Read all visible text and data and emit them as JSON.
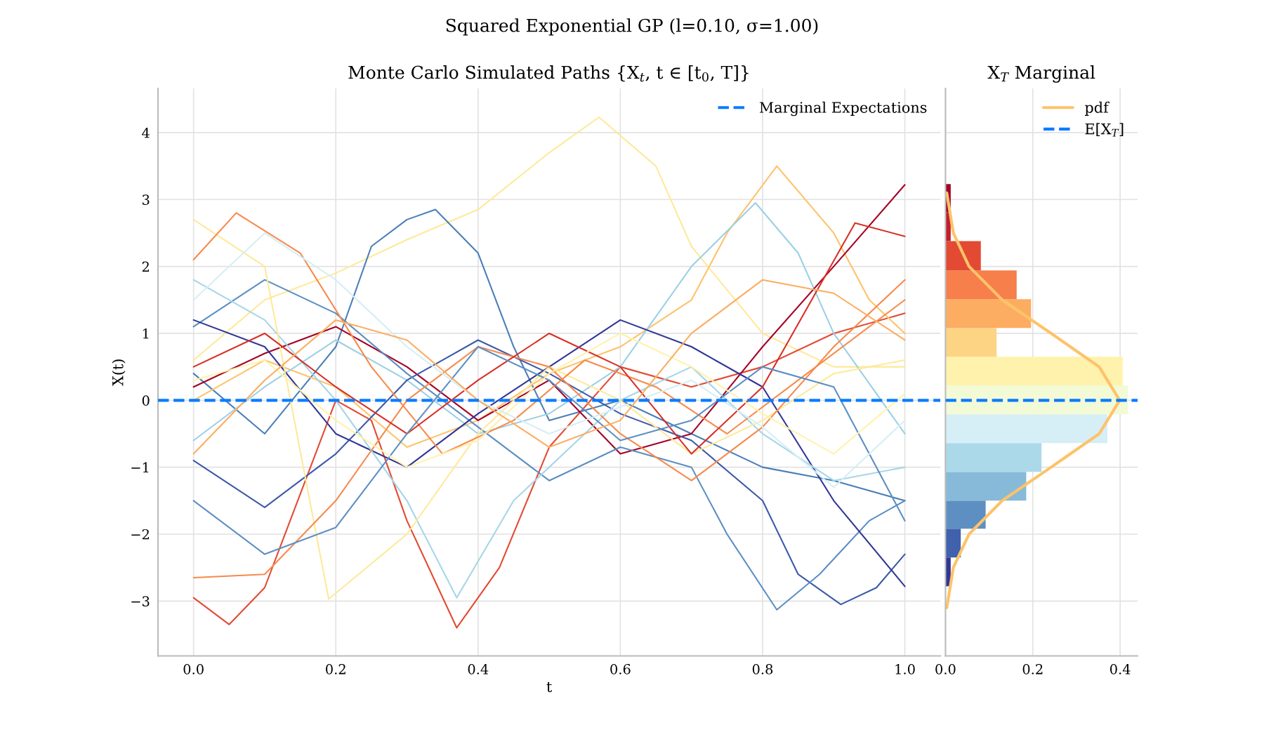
{
  "chart_data": [
    {
      "type": "line",
      "title": "Squared Exponential GP (l=0.10, σ=1.00)",
      "subtitle": "Monte Carlo Simulated Paths {X$_{t}$, t ∈ [t$_{0}$, T]}",
      "xlabel": "t",
      "ylabel": "X(t)",
      "xlim": [
        -0.05,
        1.05
      ],
      "ylim": [
        -3.82,
        4.66
      ],
      "xticks": [
        {
          "value": 0,
          "label": "0.0"
        },
        {
          "value": 0.2,
          "label": "0.2"
        },
        {
          "value": 0.4,
          "label": "0.4"
        },
        {
          "value": 0.6,
          "label": "0.6"
        },
        {
          "value": 0.8,
          "label": "0.8"
        },
        {
          "value": 1,
          "label": "1.0"
        }
      ],
      "yticks": [
        {
          "value": -3,
          "label": "−3"
        },
        {
          "value": -2,
          "label": "−2"
        },
        {
          "value": -1,
          "label": "−1"
        },
        0,
        1,
        2,
        3,
        4
      ],
      "grid": true,
      "legend": "top right",
      "ref_lines": [
        {
          "axis": "y",
          "value": 0,
          "label": "Marginal Expectations",
          "color": "#0a7cff",
          "line_style": "dashed"
        }
      ],
      "series": [
        {
          "color": "#fee99a",
          "x": [
            0,
            0.1,
            0.2,
            0.3,
            0.4,
            0.5,
            0.57,
            0.65,
            0.7,
            0.8,
            0.9,
            1.0
          ],
          "values": [
            0.6,
            1.5,
            1.9,
            2.4,
            2.85,
            3.7,
            4.23,
            3.5,
            2.3,
            1.0,
            0.5,
            0.5
          ]
        },
        {
          "color": "#e34a33",
          "x": [
            0,
            0.05,
            0.1,
            0.15,
            0.2,
            0.25,
            0.3,
            0.37,
            0.43,
            0.5,
            0.6,
            0.7,
            0.8,
            0.9,
            1.0
          ],
          "values": [
            -2.95,
            -3.35,
            -2.8,
            -1.4,
            0.0,
            -0.3,
            -1.8,
            -3.4,
            -2.5,
            -0.7,
            0.5,
            0.2,
            0.5,
            1.0,
            1.3
          ]
        },
        {
          "color": "#4a7fb8",
          "x": [
            0,
            0.1,
            0.2,
            0.25,
            0.3,
            0.34,
            0.4,
            0.45,
            0.5,
            0.6,
            0.7,
            0.8,
            0.9,
            1.0
          ],
          "values": [
            0.4,
            -0.5,
            0.8,
            2.3,
            2.7,
            2.85,
            2.2,
            0.8,
            -0.3,
            0.0,
            -0.5,
            -1.0,
            -1.2,
            -1.5
          ]
        },
        {
          "color": "#fdc36a",
          "x": [
            0,
            0.1,
            0.2,
            0.3,
            0.4,
            0.5,
            0.6,
            0.7,
            0.75,
            0.82,
            0.9,
            0.95,
            1.0
          ],
          "values": [
            0.0,
            0.6,
            0.2,
            -0.7,
            -0.3,
            0.4,
            0.8,
            1.5,
            2.5,
            3.5,
            2.5,
            1.5,
            1.0
          ]
        },
        {
          "color": "#9cd0e4",
          "x": [
            0,
            0.1,
            0.2,
            0.3,
            0.4,
            0.5,
            0.6,
            0.7,
            0.79,
            0.85,
            0.9,
            1.0
          ],
          "values": [
            -0.6,
            0.2,
            0.9,
            0.3,
            -0.5,
            -0.2,
            0.5,
            2.0,
            2.95,
            2.2,
            1.0,
            -0.5
          ]
        },
        {
          "color": "#a50026",
          "x": [
            0,
            0.1,
            0.2,
            0.3,
            0.4,
            0.5,
            0.6,
            0.7,
            0.8,
            0.9,
            1.0
          ],
          "values": [
            0.2,
            0.7,
            1.1,
            0.5,
            -0.3,
            0.3,
            -0.8,
            -0.5,
            0.8,
            2.0,
            3.22
          ]
        },
        {
          "color": "#3d5aa8",
          "x": [
            0,
            0.1,
            0.2,
            0.3,
            0.4,
            0.5,
            0.6,
            0.7,
            0.8,
            0.85,
            0.91,
            0.96,
            1.0
          ],
          "values": [
            -0.9,
            -1.6,
            -0.8,
            0.3,
            0.9,
            0.4,
            -0.2,
            -0.6,
            -1.5,
            -2.6,
            -3.05,
            -2.8,
            -2.3
          ]
        },
        {
          "color": "#5b8ec2",
          "x": [
            0,
            0.1,
            0.2,
            0.3,
            0.4,
            0.5,
            0.6,
            0.7,
            0.75,
            0.82,
            0.88,
            0.95,
            1.0
          ],
          "values": [
            1.1,
            1.8,
            1.3,
            0.4,
            -0.4,
            -1.2,
            -0.7,
            -1.0,
            -2.0,
            -3.13,
            -2.6,
            -1.8,
            -1.5
          ]
        },
        {
          "color": "#313695",
          "x": [
            0,
            0.1,
            0.2,
            0.3,
            0.4,
            0.5,
            0.6,
            0.7,
            0.8,
            0.9,
            1.0
          ],
          "values": [
            1.2,
            0.8,
            -0.5,
            -1.0,
            -0.2,
            0.5,
            1.2,
            0.8,
            0.2,
            -1.5,
            -2.78
          ]
        },
        {
          "color": "#a6d6e8",
          "x": [
            0,
            0.1,
            0.2,
            0.3,
            0.37,
            0.45,
            0.6,
            0.7,
            0.8,
            0.9,
            1.0
          ],
          "values": [
            1.8,
            1.2,
            0.0,
            -1.5,
            -2.95,
            -1.5,
            0.0,
            0.5,
            -0.5,
            -1.2,
            -1.0
          ]
        },
        {
          "color": "#fee99a",
          "x": [
            0,
            0.1,
            0.19,
            0.3,
            0.4,
            0.5,
            0.6,
            0.7,
            0.8,
            0.9,
            1.0
          ],
          "values": [
            2.7,
            2.0,
            -2.97,
            -2.0,
            -0.5,
            0.5,
            0.0,
            -0.8,
            -0.3,
            0.4,
            0.6
          ]
        },
        {
          "color": "#f68a4c",
          "x": [
            0,
            0.06,
            0.15,
            0.25,
            0.35,
            0.45,
            0.55,
            0.65,
            0.75,
            0.85,
            1.0
          ],
          "values": [
            2.1,
            2.8,
            2.2,
            0.5,
            -0.8,
            -0.3,
            0.6,
            0.2,
            -0.5,
            0.3,
            1.5
          ]
        },
        {
          "color": "#f68a4c",
          "x": [
            0,
            0.1,
            0.2,
            0.3,
            0.4,
            0.5,
            0.6,
            0.7,
            0.8,
            0.9,
            1.0
          ],
          "values": [
            -2.65,
            -2.6,
            -1.5,
            0.0,
            0.8,
            0.5,
            -0.5,
            -1.2,
            -0.4,
            0.8,
            1.8
          ]
        },
        {
          "color": "#d73027",
          "x": [
            0,
            0.1,
            0.2,
            0.3,
            0.4,
            0.5,
            0.6,
            0.7,
            0.8,
            0.93,
            1.0
          ],
          "values": [
            0.5,
            1.0,
            0.2,
            -0.5,
            0.3,
            1.0,
            0.5,
            -0.8,
            0.2,
            2.65,
            2.45
          ]
        },
        {
          "color": "#5e8fc2",
          "x": [
            0,
            0.1,
            0.2,
            0.3,
            0.4,
            0.5,
            0.6,
            0.7,
            0.8,
            0.9,
            1.0
          ],
          "values": [
            -1.5,
            -2.3,
            -1.9,
            -0.5,
            0.8,
            0.3,
            -0.6,
            -0.3,
            0.5,
            0.2,
            -1.8
          ]
        },
        {
          "color": "#fff2ac",
          "x": [
            0,
            0.1,
            0.2,
            0.3,
            0.4,
            0.5,
            0.6,
            0.7,
            0.8,
            0.9,
            1.0
          ],
          "values": [
            0.3,
            0.6,
            -0.3,
            -1.0,
            -0.6,
            0.4,
            1.0,
            0.5,
            -0.2,
            -0.8,
            0.1
          ]
        },
        {
          "color": "#d6eef5",
          "x": [
            0,
            0.1,
            0.2,
            0.3,
            0.4,
            0.5,
            0.6,
            0.7,
            0.8,
            0.9,
            1.0
          ],
          "values": [
            1.5,
            2.5,
            1.8,
            0.8,
            0.0,
            -0.5,
            -0.1,
            0.3,
            -0.4,
            -1.3,
            -0.3
          ]
        },
        {
          "color": "#fcad61",
          "x": [
            0,
            0.1,
            0.2,
            0.3,
            0.4,
            0.5,
            0.6,
            0.7,
            0.8,
            0.9,
            1.0
          ],
          "values": [
            -0.8,
            0.3,
            1.2,
            0.9,
            0.0,
            -0.7,
            -0.3,
            1.0,
            1.8,
            1.6,
            0.9
          ]
        }
      ]
    },
    {
      "type": "histogram",
      "orientation": "horizontal",
      "subtitle": "X$_{T}$ Marginal",
      "bins": [
        -2.78,
        -2.35,
        -1.92,
        -1.5,
        -1.07,
        -0.64,
        -0.21,
        0.22,
        0.65,
        1.08,
        1.51,
        1.94,
        2.38,
        2.81,
        3.23
      ],
      "values": [
        0.012,
        0.035,
        0.092,
        0.185,
        0.22,
        0.371,
        0.418,
        0.406,
        0.117,
        0.196,
        0.163,
        0.081,
        0.012,
        0.012
      ],
      "colors": [
        "#313695",
        "#4161ad",
        "#5e8fc2",
        "#86bad8",
        "#acd9e9",
        "#d6eef5",
        "#f2fad6",
        "#fff2ac",
        "#fdd384",
        "#fcad61",
        "#f67f4b",
        "#e34a33",
        "#c31e2d",
        "#a50026"
      ],
      "xlim": [
        0,
        0.44
      ],
      "ylim": [
        -3.82,
        4.66
      ],
      "xticks": [
        {
          "value": 0,
          "label": "0.0"
        },
        {
          "value": 0.2,
          "label": "0.2"
        },
        {
          "value": 0.4,
          "label": "0.4"
        }
      ],
      "yticks": [
        {
          "value": -3,
          "label": null
        },
        {
          "value": -2,
          "label": null
        },
        {
          "value": -1,
          "label": null
        },
        {
          "value": 0,
          "label": null
        },
        {
          "value": 1,
          "label": null
        },
        {
          "value": 2,
          "label": null
        },
        {
          "value": 3,
          "label": null
        },
        {
          "value": 4,
          "label": null
        }
      ],
      "tick_labels": "x",
      "grid": true,
      "legend": "top right",
      "ref_lines": [
        {
          "axis": "y",
          "value": 0,
          "label": "E[X$_{T}$]",
          "color": "#0a7cff",
          "line_style": "dashed"
        }
      ],
      "series": [
        {
          "name": "pdf",
          "type": "line",
          "color": "#fdc36a",
          "x": [
            -3.1,
            -2.5,
            -2.0,
            -1.5,
            -1.0,
            -0.5,
            0.0,
            0.5,
            1.0,
            1.5,
            2.0,
            2.5,
            3.1
          ],
          "values": [
            0.003,
            0.018,
            0.054,
            0.13,
            0.242,
            0.352,
            0.399,
            0.352,
            0.242,
            0.13,
            0.054,
            0.018,
            0.003
          ]
        }
      ]
    }
  ]
}
